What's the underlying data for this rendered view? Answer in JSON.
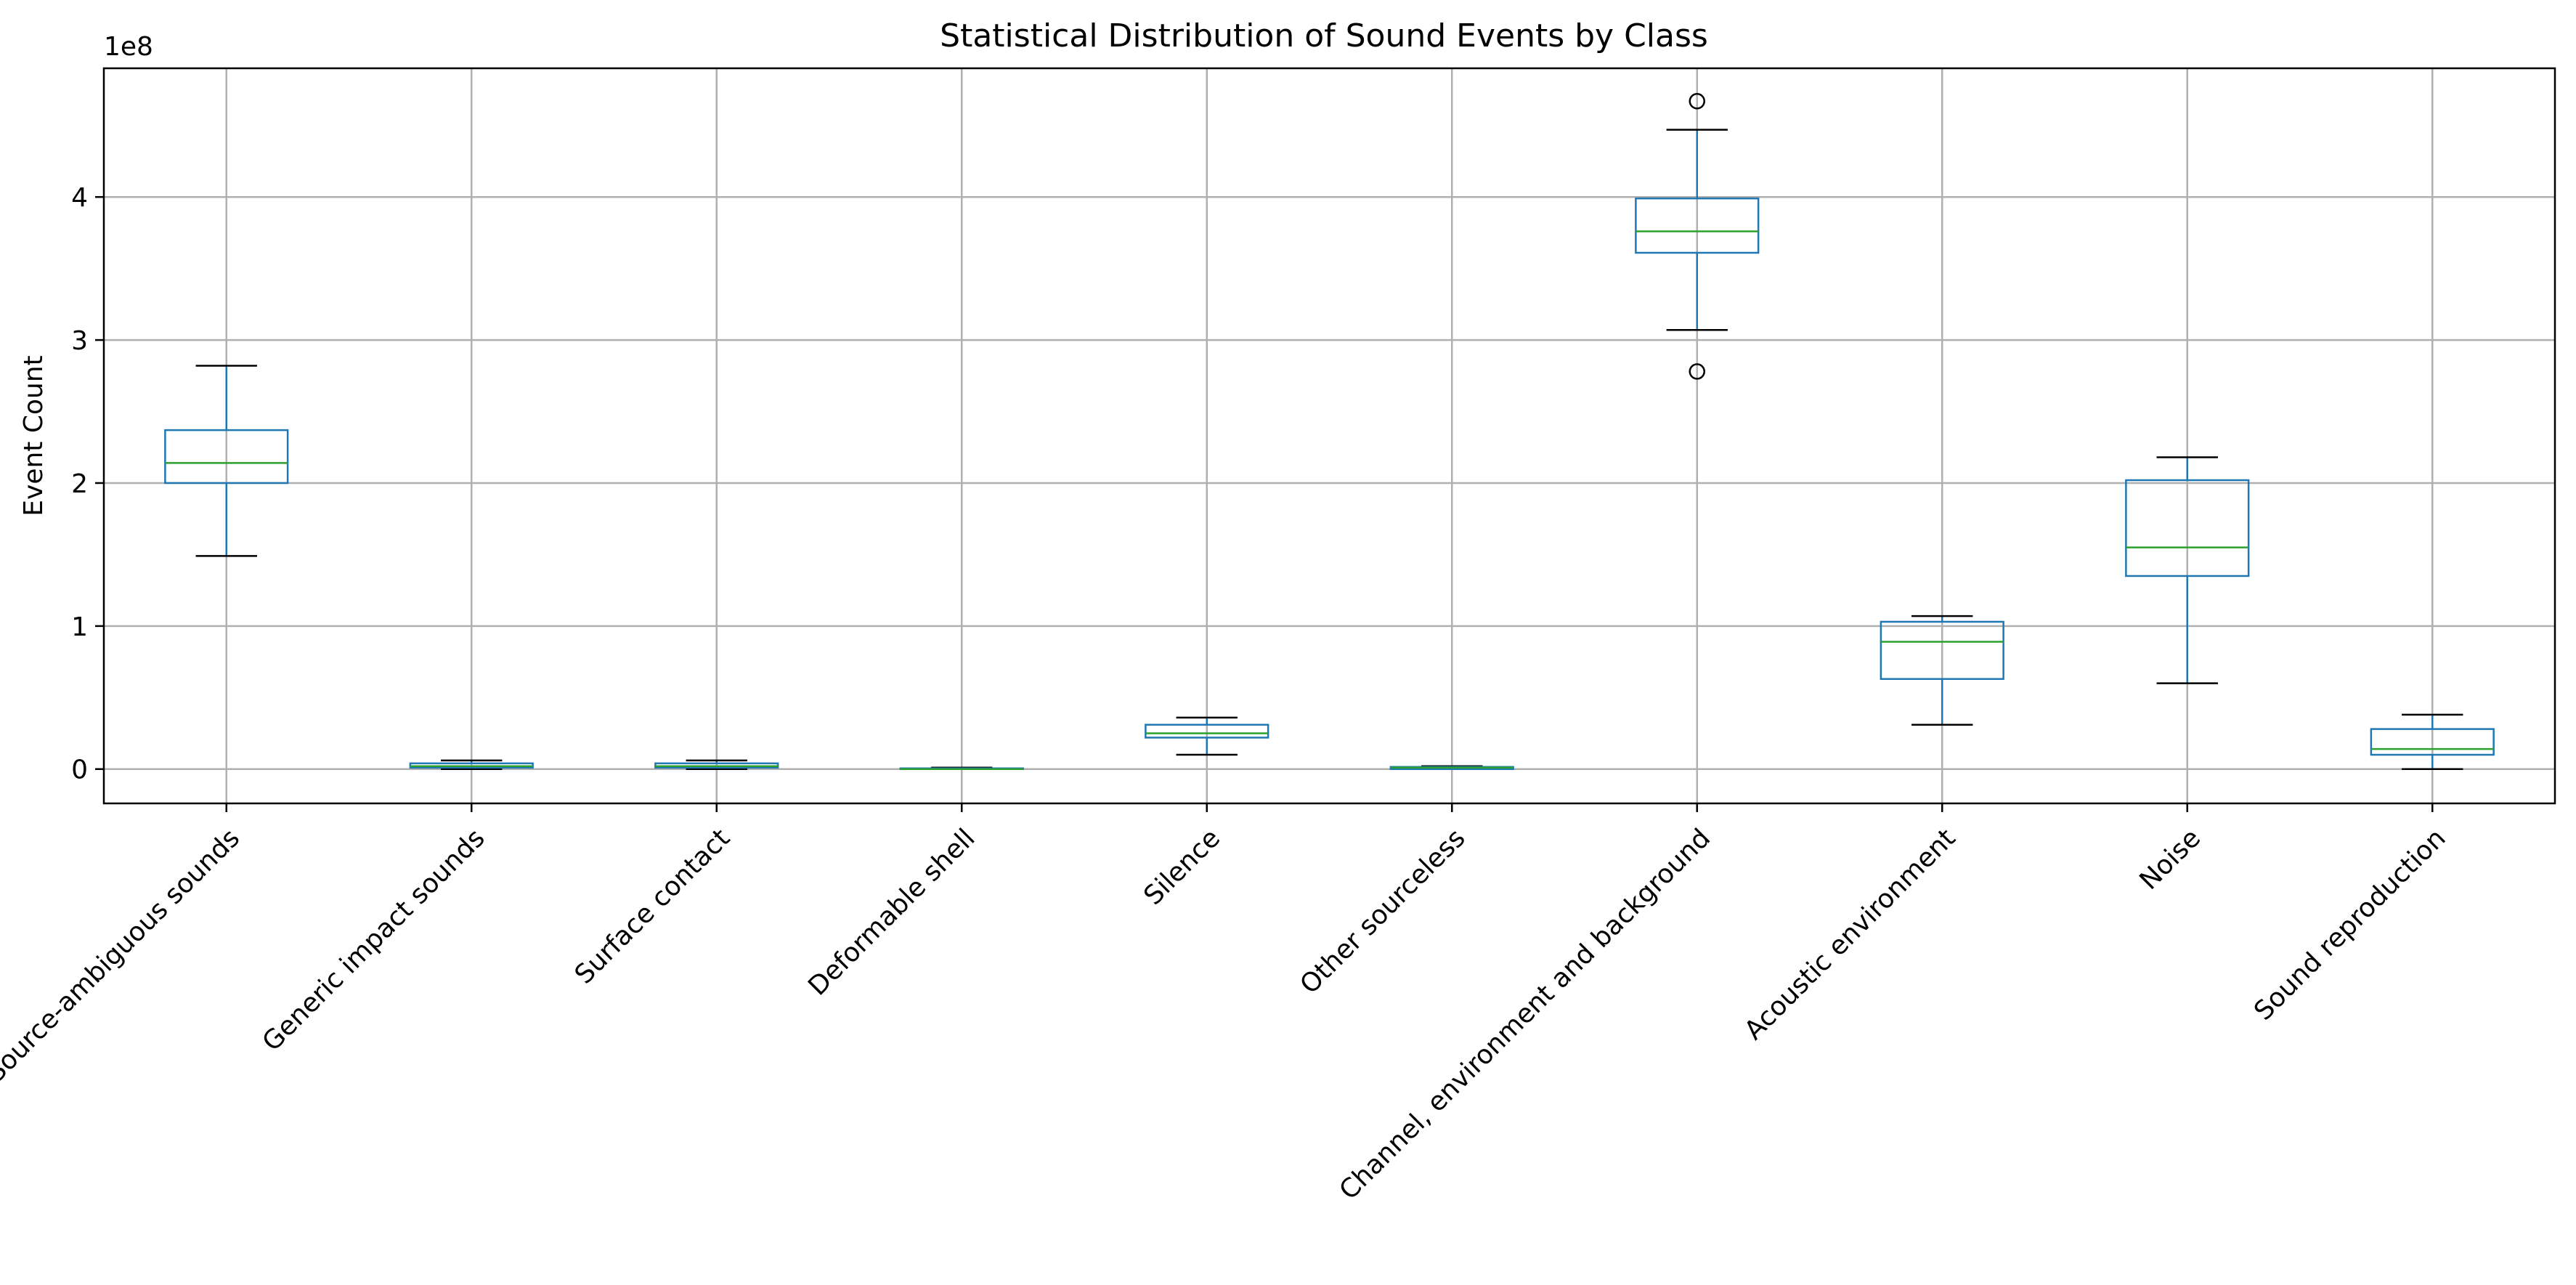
{
  "chart_data": {
    "type": "box",
    "title": "Statistical Distribution of Sound Events by Class",
    "ylabel": "Event Count",
    "xlabel": "",
    "y_offset_label": "1e8",
    "y_scale_multiplier": 100000000,
    "ylim": [
      -0.24,
      4.9
    ],
    "yticks": [
      0,
      1,
      2,
      3,
      4
    ],
    "grid": true,
    "colors": {
      "box": "#1f77b4",
      "median": "#2ca02c",
      "whisker": "#1f77b4",
      "cap": "#000000",
      "outlier": "#000000",
      "grid": "#b0b0b0"
    },
    "categories": [
      "Source-ambiguous sounds",
      "Generic impact sounds",
      "Surface contact",
      "Deformable shell",
      "Silence",
      "Other sourceless",
      "Channel, environment and background",
      "Acoustic environment",
      "Noise",
      "Sound reproduction"
    ],
    "boxes": [
      {
        "whislo": 1.49,
        "q1": 2.0,
        "med": 2.14,
        "q3": 2.37,
        "whishi": 2.82,
        "fliers": []
      },
      {
        "whislo": 0.0,
        "q1": 0.01,
        "med": 0.02,
        "q3": 0.04,
        "whishi": 0.06,
        "fliers": []
      },
      {
        "whislo": 0.0,
        "q1": 0.01,
        "med": 0.02,
        "q3": 0.04,
        "whishi": 0.06,
        "fliers": []
      },
      {
        "whislo": 0.0,
        "q1": 0.0,
        "med": 0.0,
        "q3": 0.005,
        "whishi": 0.01,
        "fliers": []
      },
      {
        "whislo": 0.1,
        "q1": 0.22,
        "med": 0.25,
        "q3": 0.31,
        "whishi": 0.36,
        "fliers": []
      },
      {
        "whislo": 0.0,
        "q1": 0.0,
        "med": 0.01,
        "q3": 0.015,
        "whishi": 0.02,
        "fliers": []
      },
      {
        "whislo": 3.07,
        "q1": 3.61,
        "med": 3.76,
        "q3": 3.99,
        "whishi": 4.47,
        "fliers": [
          4.67,
          2.78
        ]
      },
      {
        "whislo": 0.31,
        "q1": 0.63,
        "med": 0.89,
        "q3": 1.03,
        "whishi": 1.07,
        "fliers": []
      },
      {
        "whislo": 0.6,
        "q1": 1.35,
        "med": 1.55,
        "q3": 2.02,
        "whishi": 2.18,
        "fliers": []
      },
      {
        "whislo": 0.0,
        "q1": 0.1,
        "med": 0.14,
        "q3": 0.28,
        "whishi": 0.38,
        "fliers": []
      }
    ]
  }
}
